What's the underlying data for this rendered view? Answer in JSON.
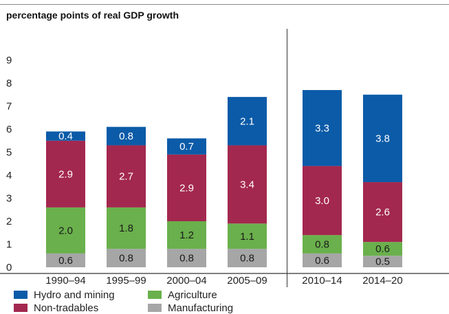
{
  "chart_data": {
    "type": "bar",
    "stacked": true,
    "title": "percentage points of real GDP growth",
    "categories": [
      "1990–94",
      "1995–99",
      "2000–04",
      "2005–09",
      "2010–14",
      "2014–20"
    ],
    "series": [
      {
        "name": "Manufacturing",
        "color": "#a6a6a6",
        "values": [
          0.6,
          0.8,
          0.8,
          0.8,
          0.6,
          0.5
        ],
        "labels": [
          "0.6",
          "0.8",
          "0.8",
          "0.8",
          "0.6",
          "0.5"
        ]
      },
      {
        "name": "Agriculture",
        "color": "#6ab04c",
        "values": [
          2.0,
          1.8,
          1.2,
          1.1,
          0.8,
          0.6
        ],
        "labels": [
          "2.0",
          "1.8",
          "1.2",
          "1.1",
          "0.8",
          "0.6"
        ]
      },
      {
        "name": "Non-tradables",
        "color": "#a3284f",
        "values": [
          2.9,
          2.7,
          2.9,
          3.4,
          3.0,
          2.6
        ],
        "labels": [
          "2.9",
          "2.7",
          "2.9",
          "3.4",
          "3.0",
          "2.6"
        ]
      },
      {
        "name": "Hydro and mining",
        "color": "#0b5ba8",
        "values": [
          0.4,
          0.8,
          0.7,
          2.1,
          3.3,
          3.8
        ],
        "labels": [
          "0.4",
          "0.8",
          "0.7",
          "2.1",
          "3.3",
          "3.8"
        ]
      }
    ],
    "yticks": [
      "0",
      "1",
      "2",
      "3",
      "4",
      "5",
      "6",
      "7",
      "8",
      "9"
    ],
    "ylim": [
      0,
      9
    ],
    "grid": false,
    "legend_position": "bottom-left",
    "legend_order": [
      "Hydro and mining",
      "Agriculture",
      "Non-tradables",
      "Manufacturing"
    ]
  }
}
